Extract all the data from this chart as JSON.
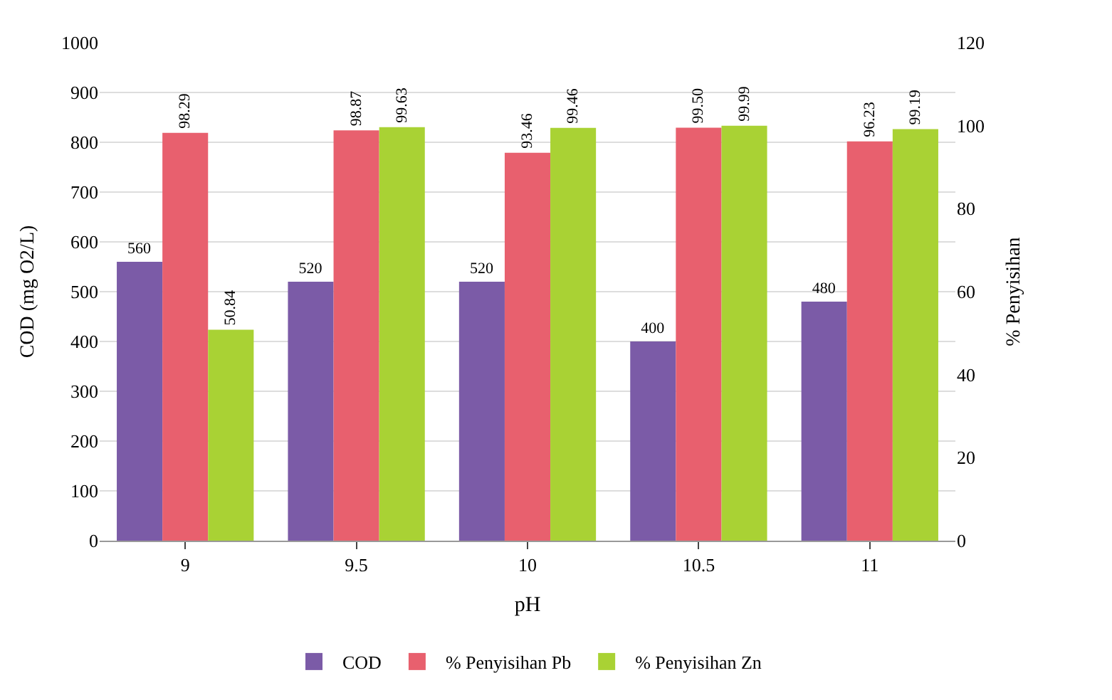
{
  "chart_data": {
    "type": "bar",
    "xlabel": "pH",
    "ylabel": "COD (mg O2/L)",
    "y2label": "% Penyisihan",
    "categories": [
      "9",
      "9.5",
      "10",
      "10.5",
      "11"
    ],
    "series": [
      {
        "name": "COD",
        "color": "#7b5ba7",
        "values": [
          560,
          520,
          520,
          400,
          480
        ],
        "value_labels": [
          "560",
          "520",
          "520",
          "400",
          "480"
        ]
      },
      {
        "name": "% Penyisihan Pb",
        "color": "#e8606e",
        "values": [
          98.29,
          98.87,
          93.46,
          99.5,
          96.23
        ],
        "value_labels": [
          "98.29",
          "98.87",
          "93.46",
          "99.50",
          "96.23"
        ],
        "axis": "y2"
      },
      {
        "name": "% Penyisihan Zn",
        "color": "#a9d234",
        "values": [
          50.84,
          99.63,
          99.46,
          99.99,
          99.19
        ],
        "value_labels": [
          "50.84",
          "99.63",
          "99.46",
          "99.99",
          "99.19"
        ],
        "axis": "y2"
      }
    ],
    "ylim": [
      0,
      1000
    ],
    "yticks": [
      0,
      100,
      200,
      300,
      400,
      500,
      600,
      700,
      800,
      900,
      1000
    ],
    "y2lim": [
      0,
      120
    ],
    "y2ticks": [
      0,
      20,
      40,
      60,
      80,
      100,
      120
    ],
    "grid": "y",
    "legend": "bottom"
  }
}
